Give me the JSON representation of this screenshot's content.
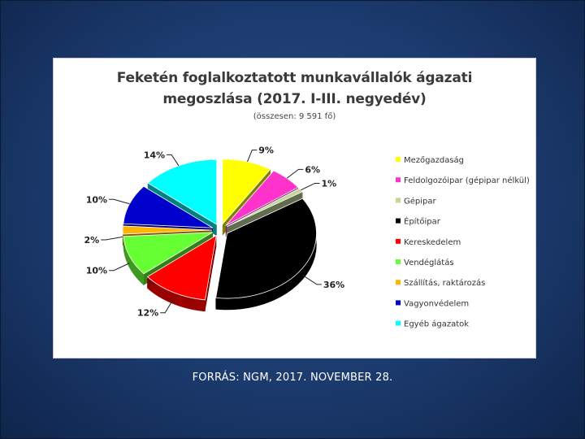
{
  "slide": {
    "source": "FORRÁS: NGM, 2017. NOVEMBER 28."
  },
  "chart_data": {
    "type": "pie",
    "title_line1": "Feketén foglalkoztatott munkavállalók ágazati",
    "title_line2": "megoszlása (2017. I-III. negyedév)",
    "subtitle": "(összesen: 9 591 fő)",
    "legend_position": "right",
    "exploded": true,
    "categories": [
      "Mezőgazdaság",
      "Feldolgozóipar (gépipar nélkül)",
      "Gépipar",
      "Építőipar",
      "Kereskedelem",
      "Vendéglátás",
      "Szállítás, raktározás",
      "Vagyonvédelem",
      "Egyéb ágazatok"
    ],
    "values": [
      9,
      6,
      1,
      36,
      12,
      10,
      2,
      10,
      14
    ],
    "labels": [
      "9%",
      "6%",
      "1%",
      "36%",
      "12%",
      "10%",
      "2%",
      "10%",
      "14%"
    ],
    "colors": [
      "#ffff00",
      "#ff33cc",
      "#c4d79b",
      "#000000",
      "#ff0000",
      "#66ff33",
      "#ffb400",
      "#0000cc",
      "#00ffff"
    ]
  }
}
